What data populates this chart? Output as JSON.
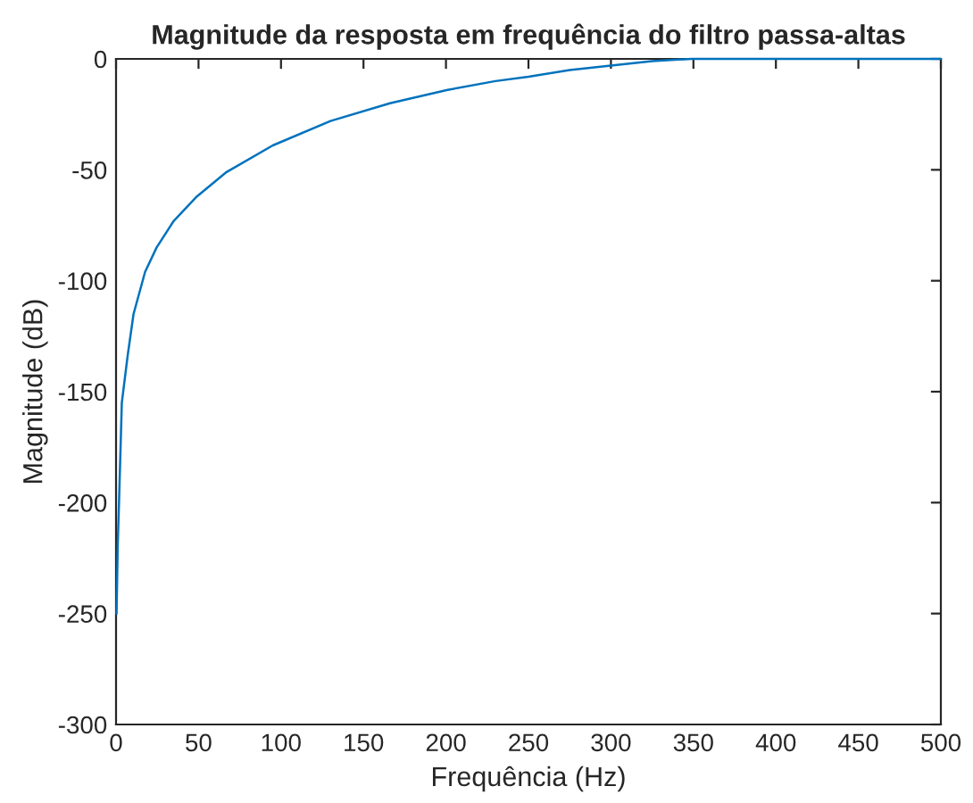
{
  "chart_data": {
    "type": "line",
    "title": "Magnitude da resposta em frequência do filtro passa-altas",
    "xlabel": "Frequência (Hz)",
    "ylabel": "Magnitude (dB)",
    "series": [
      {
        "color": "#0072bd",
        "x": [
          0.3,
          1,
          1.8,
          3.5,
          7,
          10.6,
          17.6,
          24.6,
          35,
          49,
          67,
          95,
          130,
          166,
          201,
          230,
          250,
          275,
          300,
          325,
          349,
          375,
          400,
          450,
          500
        ],
        "values": [
          -250,
          -220,
          -200,
          -155,
          -134,
          -115,
          -96,
          -85,
          -73,
          -62,
          -51,
          -39,
          -28,
          -20,
          -14,
          -10,
          -8,
          -5,
          -3,
          -1,
          0,
          0,
          0,
          0,
          0
        ]
      }
    ],
    "xlim": [
      0,
      500
    ],
    "xticks": [
      0,
      50,
      100,
      150,
      200,
      250,
      300,
      350,
      400,
      450,
      500
    ],
    "ylim": [
      -300,
      0
    ],
    "yticks": [
      -300,
      -250,
      -200,
      -150,
      -100,
      -50,
      0
    ],
    "grid": false,
    "line_style": "solid",
    "marker": "none"
  }
}
